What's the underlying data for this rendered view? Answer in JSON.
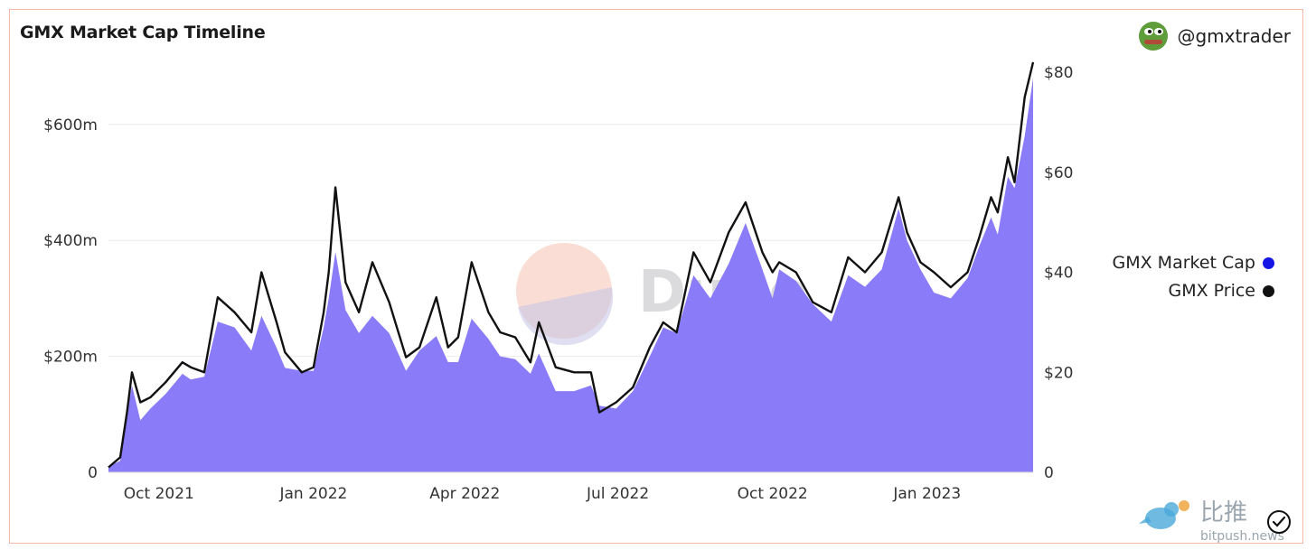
{
  "header": {
    "title": "GMX Market Cap Timeline",
    "author": "@gmxtrader"
  },
  "legend": {
    "items": [
      {
        "label": "GMX Market Cap",
        "color": "#1515e6"
      },
      {
        "label": "GMX Price",
        "color": "#111111"
      }
    ]
  },
  "watermarks": {
    "dune_text": "Dune",
    "bitpush_cn": "比推",
    "bitpush_en": "bitpush.news"
  },
  "colors": {
    "area_fill": "#8a7cf8",
    "price_line": "#111111",
    "grid": "#ececec"
  },
  "chart_data": {
    "type": "area",
    "title": "GMX Market Cap Timeline",
    "x_ticks": [
      "Oct 2021",
      "Jan 2022",
      "Apr 2022",
      "Jul 2022",
      "Oct 2022",
      "Jan 2023"
    ],
    "xlim": [
      "2021-09-01",
      "2023-03-05"
    ],
    "y_left": {
      "ticks": [
        "0",
        "$200m",
        "$400m",
        "$600m"
      ],
      "ylim": [
        0,
        690
      ]
    },
    "y_right": {
      "ticks": [
        "0",
        "$20",
        "$40",
        "$60",
        "$80"
      ],
      "ylim": [
        0,
        80
      ]
    },
    "grid": true,
    "legend_position": "right",
    "series": [
      {
        "name": "GMX Market Cap",
        "axis": "left",
        "kind": "area",
        "x": [
          "2021-09-01",
          "2021-09-08",
          "2021-09-12",
          "2021-09-15",
          "2021-09-20",
          "2021-09-26",
          "2021-10-05",
          "2021-10-15",
          "2021-10-20",
          "2021-10-28",
          "2021-11-05",
          "2021-11-15",
          "2021-11-25",
          "2021-12-01",
          "2021-12-10",
          "2021-12-15",
          "2021-12-25",
          "2022-01-01",
          "2022-01-07",
          "2022-01-10",
          "2022-01-14",
          "2022-01-20",
          "2022-01-28",
          "2022-02-05",
          "2022-02-15",
          "2022-02-25",
          "2022-03-05",
          "2022-03-15",
          "2022-03-22",
          "2022-03-28",
          "2022-04-05",
          "2022-04-15",
          "2022-04-22",
          "2022-05-01",
          "2022-05-10",
          "2022-05-15",
          "2022-05-25",
          "2022-06-05",
          "2022-06-15",
          "2022-06-20",
          "2022-06-30",
          "2022-07-10",
          "2022-07-20",
          "2022-07-28",
          "2022-08-05",
          "2022-08-15",
          "2022-08-25",
          "2022-09-05",
          "2022-09-15",
          "2022-09-25",
          "2022-10-01",
          "2022-10-05",
          "2022-10-15",
          "2022-10-25",
          "2022-11-05",
          "2022-11-15",
          "2022-11-25",
          "2022-12-05",
          "2022-12-15",
          "2022-12-20",
          "2022-12-28",
          "2023-01-05",
          "2023-01-15",
          "2023-01-25",
          "2023-02-01",
          "2023-02-08",
          "2023-02-12",
          "2023-02-18",
          "2023-02-22",
          "2023-02-28",
          "2023-03-05"
        ],
        "values": [
          10,
          20,
          100,
          150,
          90,
          110,
          135,
          170,
          160,
          165,
          260,
          250,
          210,
          270,
          215,
          180,
          175,
          175,
          250,
          300,
          380,
          280,
          240,
          270,
          240,
          175,
          210,
          235,
          190,
          190,
          265,
          230,
          200,
          195,
          170,
          205,
          140,
          140,
          150,
          115,
          110,
          140,
          200,
          250,
          240,
          340,
          300,
          360,
          430,
          350,
          300,
          350,
          330,
          290,
          260,
          340,
          320,
          350,
          455,
          400,
          350,
          310,
          300,
          335,
          390,
          440,
          410,
          510,
          490,
          580,
          680
        ]
      },
      {
        "name": "GMX Price",
        "axis": "right",
        "kind": "line",
        "x": [
          "2021-09-01",
          "2021-09-08",
          "2021-09-12",
          "2021-09-15",
          "2021-09-20",
          "2021-09-26",
          "2021-10-05",
          "2021-10-15",
          "2021-10-20",
          "2021-10-28",
          "2021-11-05",
          "2021-11-15",
          "2021-11-25",
          "2021-12-01",
          "2021-12-10",
          "2021-12-15",
          "2021-12-25",
          "2022-01-01",
          "2022-01-07",
          "2022-01-10",
          "2022-01-14",
          "2022-01-20",
          "2022-01-28",
          "2022-02-05",
          "2022-02-15",
          "2022-02-25",
          "2022-03-05",
          "2022-03-15",
          "2022-03-22",
          "2022-03-28",
          "2022-04-05",
          "2022-04-15",
          "2022-04-22",
          "2022-05-01",
          "2022-05-10",
          "2022-05-15",
          "2022-05-25",
          "2022-06-05",
          "2022-06-15",
          "2022-06-20",
          "2022-06-30",
          "2022-07-10",
          "2022-07-20",
          "2022-07-28",
          "2022-08-05",
          "2022-08-15",
          "2022-08-25",
          "2022-09-05",
          "2022-09-15",
          "2022-09-25",
          "2022-10-01",
          "2022-10-05",
          "2022-10-15",
          "2022-10-25",
          "2022-11-05",
          "2022-11-15",
          "2022-11-25",
          "2022-12-05",
          "2022-12-15",
          "2022-12-20",
          "2022-12-28",
          "2023-01-05",
          "2023-01-15",
          "2023-01-25",
          "2023-02-01",
          "2023-02-08",
          "2023-02-12",
          "2023-02-18",
          "2023-02-22",
          "2023-02-28",
          "2023-03-05"
        ],
        "values": [
          1,
          3,
          12,
          20,
          14,
          15,
          18,
          22,
          21,
          20,
          35,
          32,
          28,
          40,
          30,
          24,
          20,
          21,
          32,
          40,
          57,
          38,
          32,
          42,
          34,
          23,
          25,
          35,
          25,
          27,
          42,
          32,
          28,
          27,
          22,
          30,
          21,
          20,
          20,
          12,
          14,
          17,
          25,
          30,
          28,
          44,
          38,
          48,
          54,
          44,
          40,
          42,
          40,
          34,
          32,
          43,
          40,
          44,
          55,
          48,
          42,
          40,
          37,
          40,
          47,
          55,
          52,
          63,
          58,
          75,
          82
        ]
      }
    ]
  }
}
